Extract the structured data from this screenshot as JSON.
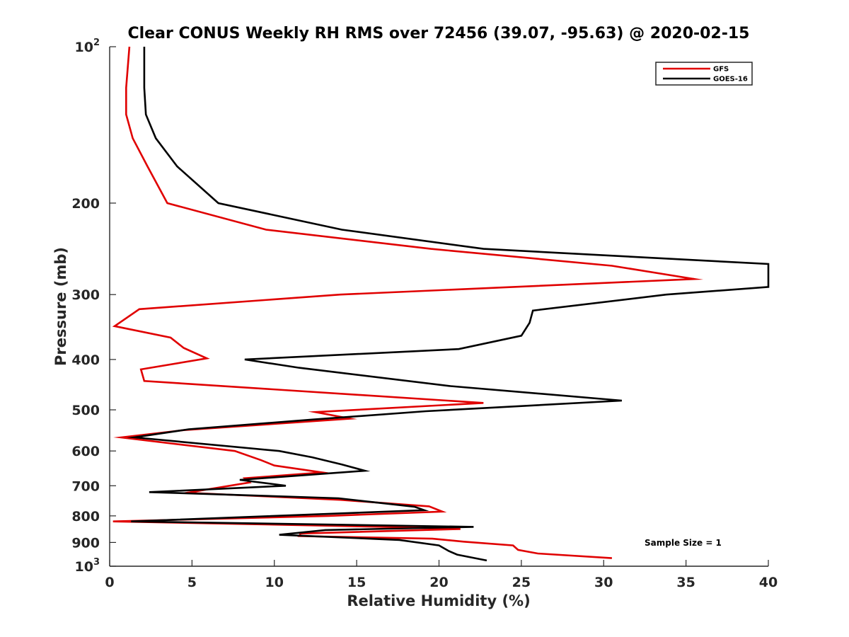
{
  "chart_data": {
    "type": "line",
    "title": "Clear CONUS Weekly RH RMS over 72456 (39.07, -95.63) @ 2020-02-15",
    "xlabel": "Relative Humidity (%)",
    "ylabel": "Pressure (mb)",
    "xlim": [
      0,
      40
    ],
    "ylim": [
      100,
      1000
    ],
    "yscale": "log",
    "y_reversed": true,
    "grid": false,
    "legend_position": "top-right",
    "x_ticks": [
      0,
      5,
      10,
      15,
      20,
      25,
      30,
      35,
      40
    ],
    "x_tick_labels": [
      "0",
      "5",
      "10",
      "15",
      "20",
      "25",
      "30",
      "35",
      "40"
    ],
    "y_ticks": [
      100,
      200,
      300,
      400,
      500,
      600,
      700,
      800,
      900,
      1000
    ],
    "y_tick_labels": [
      {
        "base": "10",
        "sup": "2"
      },
      {
        "base": "200"
      },
      {
        "base": "300"
      },
      {
        "base": "400"
      },
      {
        "base": "500"
      },
      {
        "base": "600"
      },
      {
        "base": "700"
      },
      {
        "base": "800"
      },
      {
        "base": "900"
      },
      {
        "base": "10",
        "sup": "3"
      }
    ],
    "annotation": "Sample Size = 1",
    "series": [
      {
        "name": "GFS",
        "color": "#e00000",
        "points": [
          [
            1.2,
            100
          ],
          [
            1.0,
            120
          ],
          [
            1.0,
            135
          ],
          [
            1.4,
            150
          ],
          [
            2.3,
            170
          ],
          [
            3.5,
            200
          ],
          [
            9.5,
            225
          ],
          [
            19.5,
            245
          ],
          [
            30.5,
            264
          ],
          [
            35.5,
            280
          ],
          [
            14.0,
            300
          ],
          [
            1.8,
            320
          ],
          [
            0.3,
            345
          ],
          [
            3.7,
            363
          ],
          [
            4.5,
            380
          ],
          [
            5.9,
            398
          ],
          [
            1.9,
            418
          ],
          [
            2.1,
            440
          ],
          [
            22.7,
            485
          ],
          [
            12.5,
            505
          ],
          [
            14.6,
            520
          ],
          [
            4.5,
            547
          ],
          [
            0.7,
            565
          ],
          [
            7.6,
            600
          ],
          [
            9.2,
            625
          ],
          [
            10.0,
            640
          ],
          [
            12.9,
            660
          ],
          [
            8.2,
            677
          ],
          [
            8.5,
            690
          ],
          [
            4.7,
            722
          ],
          [
            14.0,
            745
          ],
          [
            19.4,
            767
          ],
          [
            20.2,
            785
          ],
          [
            13.3,
            800
          ],
          [
            0.2,
            820
          ],
          [
            16.8,
            840
          ],
          [
            21.3,
            848
          ],
          [
            11.6,
            865
          ],
          [
            11.5,
            875
          ],
          [
            19.6,
            885
          ],
          [
            21.5,
            897
          ],
          [
            24.5,
            912
          ],
          [
            24.8,
            930
          ],
          [
            26.0,
            945
          ],
          [
            30.5,
            965
          ]
        ]
      },
      {
        "name": "GOES-16",
        "color": "#000000",
        "points": [
          [
            2.1,
            100
          ],
          [
            2.1,
            120
          ],
          [
            2.2,
            135
          ],
          [
            2.8,
            150
          ],
          [
            4.1,
            170
          ],
          [
            6.6,
            200
          ],
          [
            14.1,
            225
          ],
          [
            22.7,
            245
          ],
          [
            40.0,
            262
          ],
          [
            40.0,
            290
          ],
          [
            33.8,
            300
          ],
          [
            25.7,
            322
          ],
          [
            25.5,
            340
          ],
          [
            25.0,
            360
          ],
          [
            21.2,
            382
          ],
          [
            8.2,
            400
          ],
          [
            11.5,
            415
          ],
          [
            20.7,
            450
          ],
          [
            31.1,
            480
          ],
          [
            19.2,
            503
          ],
          [
            12.3,
            522
          ],
          [
            4.8,
            545
          ],
          [
            1.5,
            565
          ],
          [
            10.3,
            600
          ],
          [
            12.3,
            617
          ],
          [
            14.1,
            637
          ],
          [
            15.5,
            655
          ],
          [
            7.9,
            682
          ],
          [
            10.7,
            700
          ],
          [
            2.4,
            720
          ],
          [
            13.9,
            740
          ],
          [
            18.5,
            768
          ],
          [
            19.1,
            780
          ],
          [
            1.3,
            820
          ],
          [
            22.1,
            840
          ],
          [
            13.1,
            852
          ],
          [
            10.3,
            870
          ],
          [
            17.6,
            890
          ],
          [
            20.0,
            912
          ],
          [
            20.6,
            935
          ],
          [
            21.1,
            950
          ],
          [
            22.9,
            975
          ]
        ]
      }
    ]
  }
}
